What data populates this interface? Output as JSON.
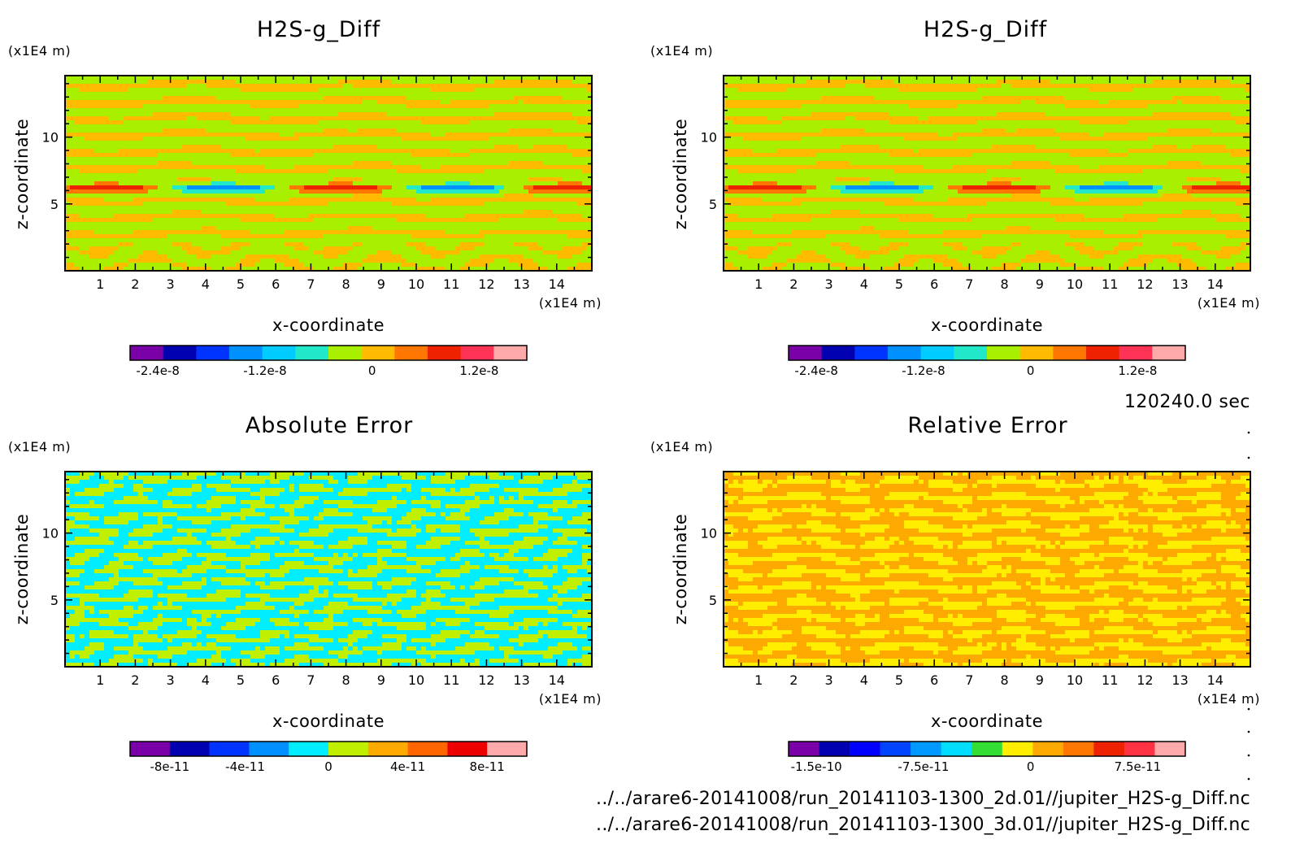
{
  "time_label": "120240.0 sec",
  "footer": {
    "file1": "../../arare6-20141008/run_20141103-1300_2d.01//jupiter_H2S-g_Diff.nc",
    "file2": "../../arare6-20141008/run_20141103-1300_3d.01//jupiter_H2S-g_Diff.nc"
  },
  "chart_data": [
    {
      "type": "heatmap",
      "title": "H2S-g_Diff",
      "xlabel": "x-coordinate",
      "ylabel": "z-coordinate",
      "xunit": "(x1E4 m)",
      "yunit": "(x1E4 m)",
      "xlim": [
        0,
        15
      ],
      "ylim": [
        0,
        14.6
      ],
      "xticks": [
        "1",
        "2",
        "3",
        "4",
        "5",
        "6",
        "7",
        "8",
        "9",
        "10",
        "11",
        "12",
        "13",
        "14"
      ],
      "yticks": [
        "5",
        "10"
      ],
      "pattern": "bands",
      "colorbar": {
        "colors": [
          "#7a00a8",
          "#0000b0",
          "#0033ff",
          "#0090ff",
          "#00ccff",
          "#20e8c8",
          "#a8f000",
          "#ffbb00",
          "#ff7700",
          "#ee2200",
          "#ff3355",
          "#ffaaaa"
        ],
        "ticks": [
          "-2.4e-8",
          "-1.2e-8",
          "0",
          "1.2e-8"
        ]
      }
    },
    {
      "type": "heatmap",
      "title": "H2S-g_Diff",
      "xlabel": "x-coordinate",
      "ylabel": "z-coordinate",
      "xunit": "(x1E4 m)",
      "yunit": "(x1E4 m)",
      "xlim": [
        0,
        15
      ],
      "ylim": [
        0,
        14.6
      ],
      "xticks": [
        "1",
        "2",
        "3",
        "4",
        "5",
        "6",
        "7",
        "8",
        "9",
        "10",
        "11",
        "12",
        "13",
        "14"
      ],
      "yticks": [
        "5",
        "10"
      ],
      "pattern": "bands",
      "colorbar": {
        "colors": [
          "#7a00a8",
          "#0000b0",
          "#0033ff",
          "#0090ff",
          "#00ccff",
          "#20e8c8",
          "#a8f000",
          "#ffbb00",
          "#ff7700",
          "#ee2200",
          "#ff3355",
          "#ffaaaa"
        ],
        "ticks": [
          "-2.4e-8",
          "-1.2e-8",
          "0",
          "1.2e-8"
        ]
      }
    },
    {
      "type": "heatmap",
      "title": "Absolute Error",
      "xlabel": "x-coordinate",
      "ylabel": "z-coordinate",
      "xunit": "(x1E4 m)",
      "yunit": "(x1E4 m)",
      "xlim": [
        0,
        15
      ],
      "ylim": [
        0,
        14.6
      ],
      "xticks": [
        "1",
        "2",
        "3",
        "4",
        "5",
        "6",
        "7",
        "8",
        "9",
        "10",
        "11",
        "12",
        "13",
        "14"
      ],
      "yticks": [
        "5",
        "10"
      ],
      "pattern": "abs",
      "colorbar": {
        "colors": [
          "#7a00a8",
          "#0000b0",
          "#0033ff",
          "#0090ff",
          "#00eeff",
          "#c0f000",
          "#ffaa00",
          "#ff6600",
          "#ee0000",
          "#ffaaaa"
        ],
        "ticks": [
          "-8e-11",
          "-4e-11",
          "0",
          "4e-11",
          "8e-11"
        ]
      }
    },
    {
      "type": "heatmap",
      "title": "Relative Error",
      "xlabel": "x-coordinate",
      "ylabel": "z-coordinate",
      "xunit": "(x1E4 m)",
      "yunit": "(x1E4 m)",
      "xlim": [
        0,
        15
      ],
      "ylim": [
        0,
        14.6
      ],
      "xticks": [
        "1",
        "2",
        "3",
        "4",
        "5",
        "6",
        "7",
        "8",
        "9",
        "10",
        "11",
        "12",
        "13",
        "14"
      ],
      "yticks": [
        "5",
        "10"
      ],
      "pattern": "rel",
      "colorbar": {
        "colors": [
          "#7a00a8",
          "#0000b0",
          "#0000ff",
          "#0044ff",
          "#0099ff",
          "#00ddff",
          "#33dd33",
          "#ffee00",
          "#ffaa00",
          "#ff7700",
          "#ee2200",
          "#ff3344",
          "#ffaaaa"
        ],
        "ticks": [
          "-1.5e-10",
          "-7.5e-11",
          "0",
          "7.5e-11"
        ]
      }
    }
  ]
}
